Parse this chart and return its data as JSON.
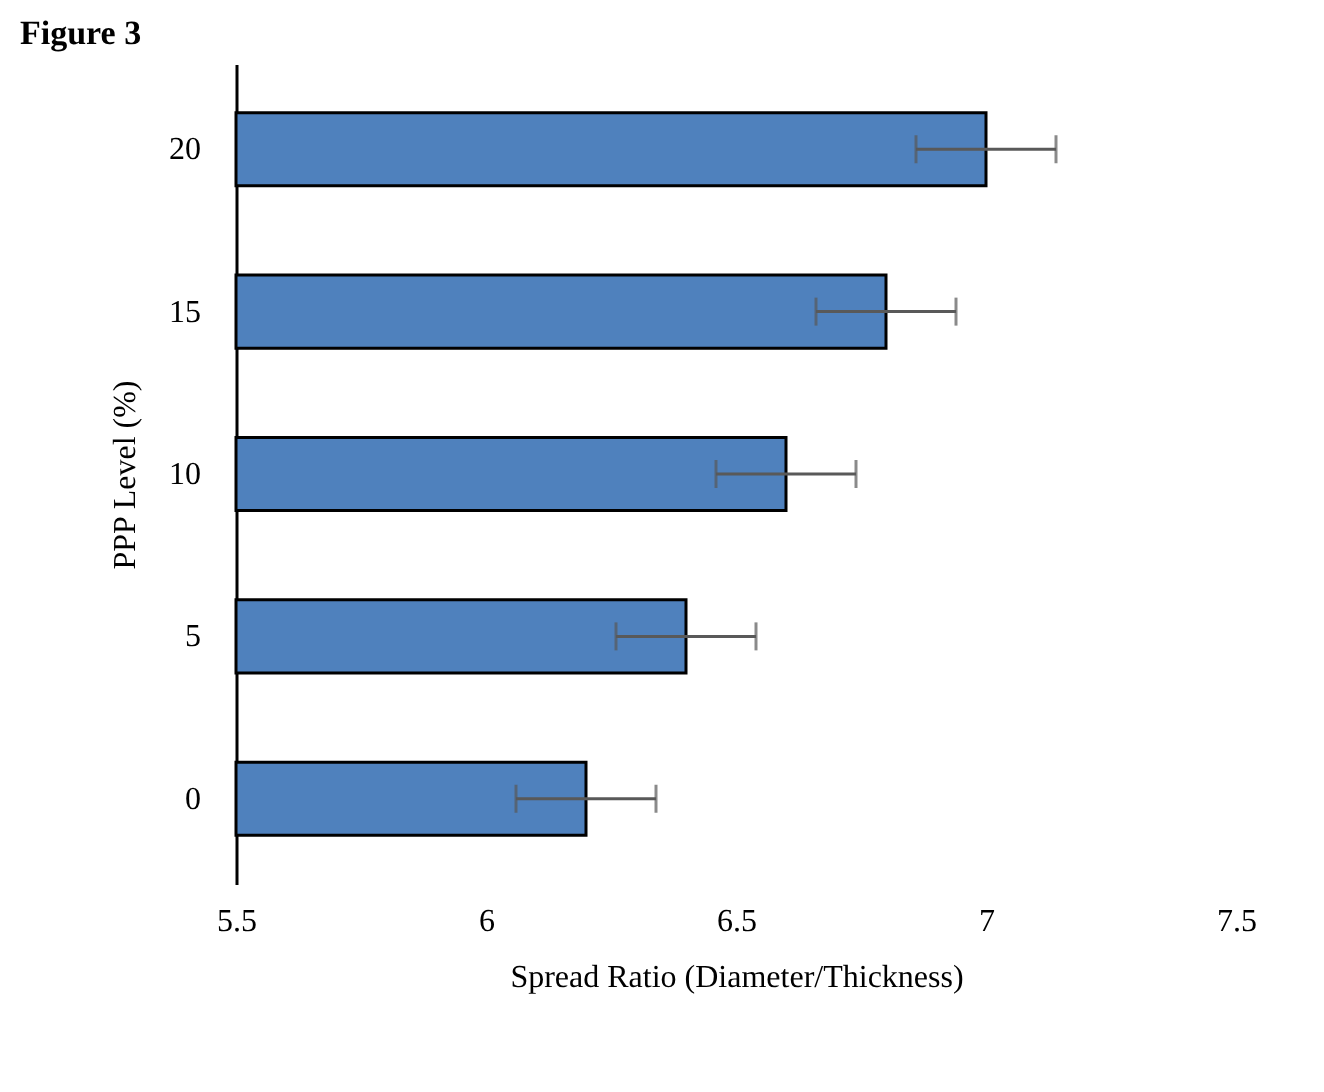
{
  "chart_data": {
    "type": "bar",
    "orientation": "horizontal",
    "title": "Figure 3",
    "xlabel": "Spread Ratio (Diameter/Thickness)",
    "ylabel": "PPP Level (%)",
    "categories": [
      "20",
      "15",
      "10",
      "5",
      "0"
    ],
    "values": [
      7.0,
      6.8,
      6.6,
      6.4,
      6.2
    ],
    "errors": [
      0.14,
      0.14,
      0.14,
      0.14,
      0.14
    ],
    "color": "#4f81bd",
    "xlim": [
      5.5,
      7.5
    ],
    "xticks": [
      5.5,
      6,
      6.5,
      7,
      7.5
    ],
    "grid": false
  }
}
